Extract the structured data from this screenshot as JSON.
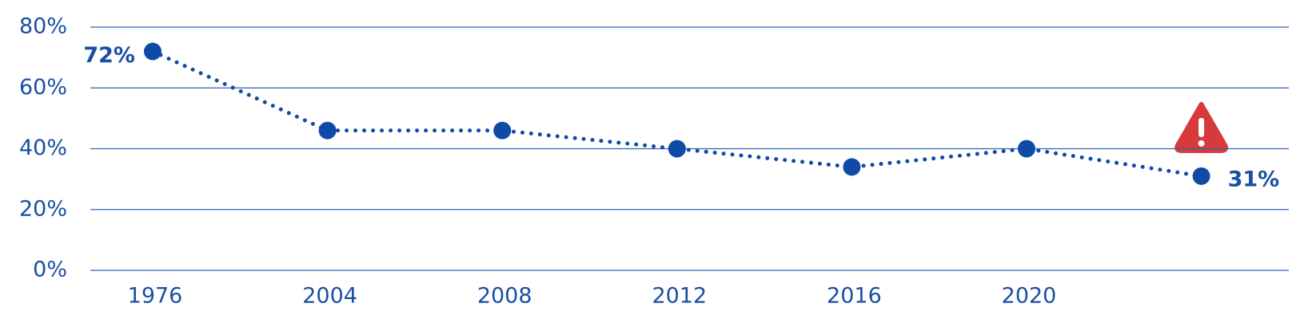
{
  "chart_data": {
    "type": "line",
    "categories": [
      "1976",
      "2004",
      "2008",
      "2012",
      "2016",
      "2020",
      null
    ],
    "values": [
      72,
      46,
      46,
      40,
      34,
      40,
      31
    ],
    "value_labels": [
      "72%",
      null,
      null,
      null,
      null,
      null,
      "31%"
    ],
    "color": "#0f4aa6",
    "ylim": [
      0,
      80
    ],
    "yticks": [
      {
        "value": 0,
        "label": "0%"
      },
      {
        "value": 20,
        "label": "20%"
      },
      {
        "value": 40,
        "label": "40%"
      },
      {
        "value": 60,
        "label": "60%"
      },
      {
        "value": 80,
        "label": "80%"
      }
    ],
    "grid": true
  }
}
